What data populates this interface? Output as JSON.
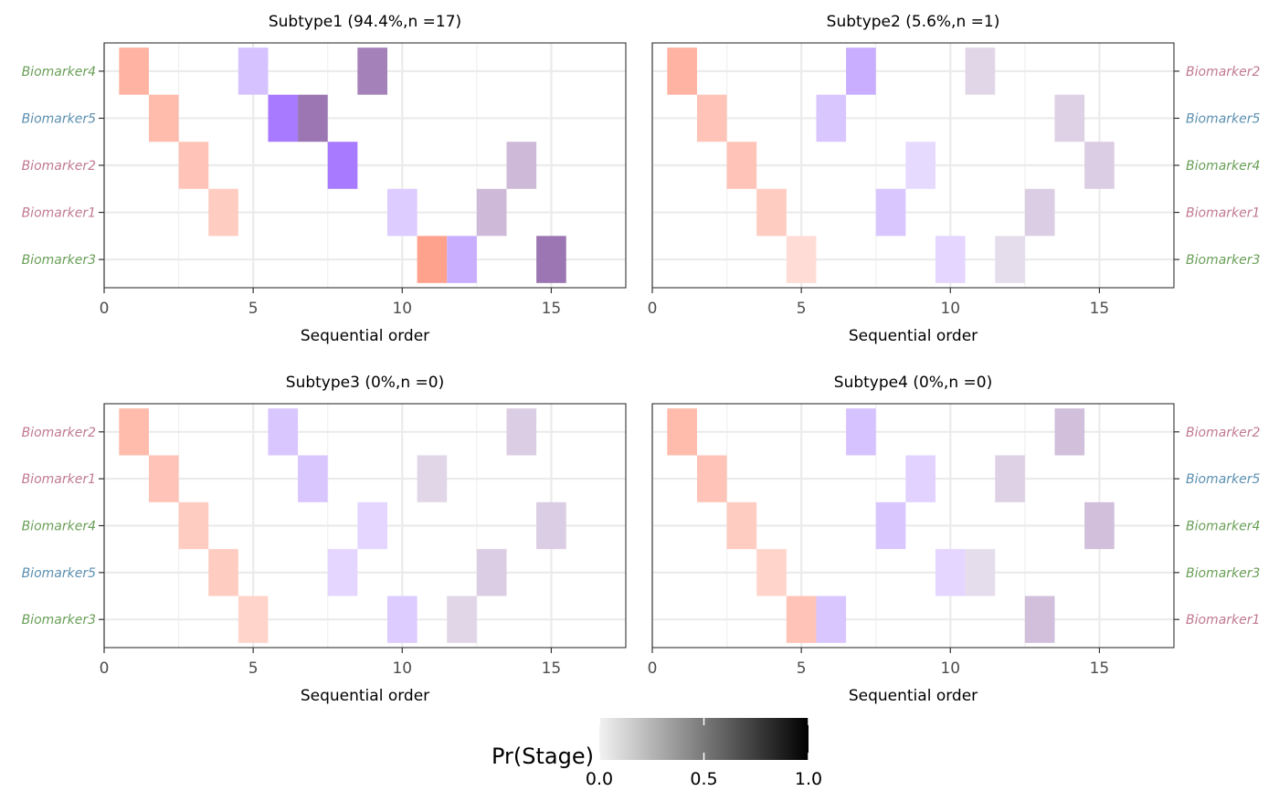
{
  "chart_data": [
    {
      "type": "heatmap",
      "title": "Subtype1 (94.4%,n =17)",
      "xlabel": "Sequential order",
      "xlim": [
        0,
        17.5
      ],
      "xticks": [
        0,
        5,
        10,
        15
      ],
      "y_side": "left",
      "rows": [
        "Biomarker4",
        "Biomarker5",
        "Biomarker2",
        "Biomarker1",
        "Biomarker3"
      ],
      "row_colors": [
        "#6a9f58",
        "#5b8fb0",
        "#c07a90",
        "#c07a90",
        "#6a9f58"
      ],
      "cells": [
        {
          "row": 0,
          "x": 1,
          "level": 1,
          "p": 0.45
        },
        {
          "row": 0,
          "x": 5,
          "level": 2,
          "p": 0.3
        },
        {
          "row": 0,
          "x": 9,
          "level": 3,
          "p": 0.55
        },
        {
          "row": 1,
          "x": 2,
          "level": 1,
          "p": 0.4
        },
        {
          "row": 1,
          "x": 6,
          "level": 2,
          "p": 0.65
        },
        {
          "row": 1,
          "x": 7,
          "level": 3,
          "p": 0.6
        },
        {
          "row": 2,
          "x": 3,
          "level": 1,
          "p": 0.35
        },
        {
          "row": 2,
          "x": 8,
          "level": 2,
          "p": 0.65
        },
        {
          "row": 2,
          "x": 14,
          "level": 3,
          "p": 0.3
        },
        {
          "row": 3,
          "x": 4,
          "level": 1,
          "p": 0.3
        },
        {
          "row": 3,
          "x": 10,
          "level": 2,
          "p": 0.25
        },
        {
          "row": 3,
          "x": 13,
          "level": 3,
          "p": 0.3
        },
        {
          "row": 4,
          "x": 11,
          "level": 1,
          "p": 0.55
        },
        {
          "row": 4,
          "x": 12,
          "level": 2,
          "p": 0.4
        },
        {
          "row": 4,
          "x": 15,
          "level": 3,
          "p": 0.6
        }
      ]
    },
    {
      "type": "heatmap",
      "title": "Subtype2 (5.6%,n =1)",
      "xlabel": "Sequential order",
      "xlim": [
        0,
        17.5
      ],
      "xticks": [
        0,
        5,
        10,
        15
      ],
      "y_side": "right",
      "rows": [
        "Biomarker2",
        "Biomarker5",
        "Biomarker4",
        "Biomarker1",
        "Biomarker3"
      ],
      "row_colors": [
        "#c07a90",
        "#5b8fb0",
        "#6a9f58",
        "#c07a90",
        "#6a9f58"
      ],
      "cells": [
        {
          "row": 0,
          "x": 1,
          "level": 1,
          "p": 0.45
        },
        {
          "row": 0,
          "x": 7,
          "level": 2,
          "p": 0.4
        },
        {
          "row": 0,
          "x": 11,
          "level": 3,
          "p": 0.18
        },
        {
          "row": 1,
          "x": 2,
          "level": 1,
          "p": 0.35
        },
        {
          "row": 1,
          "x": 6,
          "level": 2,
          "p": 0.28
        },
        {
          "row": 1,
          "x": 14,
          "level": 3,
          "p": 0.2
        },
        {
          "row": 2,
          "x": 3,
          "level": 1,
          "p": 0.35
        },
        {
          "row": 2,
          "x": 9,
          "level": 2,
          "p": 0.18
        },
        {
          "row": 2,
          "x": 15,
          "level": 3,
          "p": 0.22
        },
        {
          "row": 3,
          "x": 4,
          "level": 1,
          "p": 0.3
        },
        {
          "row": 3,
          "x": 8,
          "level": 2,
          "p": 0.28
        },
        {
          "row": 3,
          "x": 13,
          "level": 3,
          "p": 0.22
        },
        {
          "row": 4,
          "x": 5,
          "level": 1,
          "p": 0.2
        },
        {
          "row": 4,
          "x": 10,
          "level": 2,
          "p": 0.2
        },
        {
          "row": 4,
          "x": 12,
          "level": 3,
          "p": 0.15
        }
      ]
    },
    {
      "type": "heatmap",
      "title": "Subtype3 (0%,n =0)",
      "xlabel": "Sequential order",
      "xlim": [
        0,
        17.5
      ],
      "xticks": [
        0,
        5,
        10,
        15
      ],
      "y_side": "left",
      "rows": [
        "Biomarker2",
        "Biomarker1",
        "Biomarker4",
        "Biomarker5",
        "Biomarker3"
      ],
      "row_colors": [
        "#c07a90",
        "#c07a90",
        "#6a9f58",
        "#5b8fb0",
        "#6a9f58"
      ],
      "cells": [
        {
          "row": 0,
          "x": 1,
          "level": 1,
          "p": 0.4
        },
        {
          "row": 0,
          "x": 6,
          "level": 2,
          "p": 0.28
        },
        {
          "row": 0,
          "x": 14,
          "level": 3,
          "p": 0.22
        },
        {
          "row": 1,
          "x": 2,
          "level": 1,
          "p": 0.35
        },
        {
          "row": 1,
          "x": 7,
          "level": 2,
          "p": 0.28
        },
        {
          "row": 1,
          "x": 11,
          "level": 3,
          "p": 0.18
        },
        {
          "row": 2,
          "x": 3,
          "level": 1,
          "p": 0.3
        },
        {
          "row": 2,
          "x": 9,
          "level": 2,
          "p": 0.2
        },
        {
          "row": 2,
          "x": 15,
          "level": 3,
          "p": 0.22
        },
        {
          "row": 3,
          "x": 4,
          "level": 1,
          "p": 0.3
        },
        {
          "row": 3,
          "x": 8,
          "level": 2,
          "p": 0.2
        },
        {
          "row": 3,
          "x": 13,
          "level": 3,
          "p": 0.22
        },
        {
          "row": 4,
          "x": 5,
          "level": 1,
          "p": 0.25
        },
        {
          "row": 4,
          "x": 10,
          "level": 2,
          "p": 0.25
        },
        {
          "row": 4,
          "x": 12,
          "level": 3,
          "p": 0.18
        }
      ]
    },
    {
      "type": "heatmap",
      "title": "Subtype4 (0%,n =0)",
      "xlabel": "Sequential order",
      "xlim": [
        0,
        17.5
      ],
      "xticks": [
        0,
        5,
        10,
        15
      ],
      "y_side": "right",
      "rows": [
        "Biomarker2",
        "Biomarker5",
        "Biomarker4",
        "Biomarker3",
        "Biomarker1"
      ],
      "row_colors": [
        "#c07a90",
        "#5b8fb0",
        "#6a9f58",
        "#6a9f58",
        "#c07a90"
      ],
      "cells": [
        {
          "row": 0,
          "x": 1,
          "level": 1,
          "p": 0.4
        },
        {
          "row": 0,
          "x": 7,
          "level": 2,
          "p": 0.3
        },
        {
          "row": 0,
          "x": 14,
          "level": 3,
          "p": 0.28
        },
        {
          "row": 1,
          "x": 2,
          "level": 1,
          "p": 0.35
        },
        {
          "row": 1,
          "x": 9,
          "level": 2,
          "p": 0.22
        },
        {
          "row": 1,
          "x": 12,
          "level": 3,
          "p": 0.2
        },
        {
          "row": 2,
          "x": 3,
          "level": 1,
          "p": 0.3
        },
        {
          "row": 2,
          "x": 8,
          "level": 2,
          "p": 0.28
        },
        {
          "row": 2,
          "x": 15,
          "level": 3,
          "p": 0.28
        },
        {
          "row": 3,
          "x": 4,
          "level": 1,
          "p": 0.25
        },
        {
          "row": 3,
          "x": 10,
          "level": 2,
          "p": 0.2
        },
        {
          "row": 3,
          "x": 11,
          "level": 3,
          "p": 0.15
        },
        {
          "row": 4,
          "x": 5,
          "level": 1,
          "p": 0.35
        },
        {
          "row": 4,
          "x": 6,
          "level": 2,
          "p": 0.28
        },
        {
          "row": 4,
          "x": 13,
          "level": 3,
          "p": 0.28
        }
      ]
    }
  ],
  "level_colors": [
    "#ff5530",
    "#7733ff",
    "#5a1a7e"
  ],
  "legend": {
    "title": "Pr(Stage)",
    "range": [
      0,
      1
    ],
    "ticks": [
      "0.0",
      "0.5",
      "1.0"
    ],
    "placement": "bottom"
  }
}
